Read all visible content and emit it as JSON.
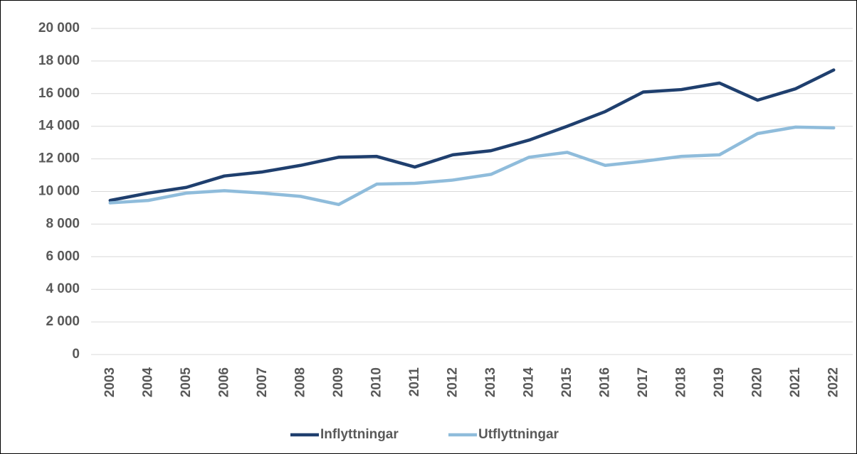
{
  "chart_data": {
    "type": "line",
    "categories": [
      "2003",
      "2004",
      "2005",
      "2006",
      "2007",
      "2008",
      "2009",
      "2010",
      "2011",
      "2012",
      "2013",
      "2014",
      "2015",
      "2016",
      "2017",
      "2018",
      "2019",
      "2020",
      "2021",
      "2022"
    ],
    "series": [
      {
        "name": "Inflyttningar",
        "color": "#1f3f6e",
        "values": [
          9450,
          9900,
          10250,
          10950,
          11200,
          11600,
          12100,
          12150,
          11500,
          12250,
          12500,
          13150,
          14000,
          14900,
          16100,
          16250,
          16650,
          15600,
          16300,
          17450
        ]
      },
      {
        "name": "Utflyttningar",
        "color": "#8fbcdb",
        "values": [
          9300,
          9450,
          9900,
          10050,
          9900,
          9700,
          9200,
          10450,
          10500,
          10700,
          11050,
          12100,
          12400,
          11600,
          11850,
          12150,
          12250,
          13550,
          13950,
          13900
        ]
      }
    ],
    "ylim": [
      0,
      20000
    ],
    "yticks": [
      0,
      {
        "value": 2000,
        "label": "2 000"
      },
      {
        "value": 4000,
        "label": "4 000"
      },
      {
        "value": 6000,
        "label": "6 000"
      },
      {
        "value": 8000,
        "label": "8 000"
      },
      {
        "value": 10000,
        "label": "10 000"
      },
      {
        "value": 12000,
        "label": "12 000"
      },
      {
        "value": 14000,
        "label": "14 000"
      },
      {
        "value": 16000,
        "label": "16 000"
      },
      {
        "value": 18000,
        "label": "18 000"
      },
      {
        "value": 20000,
        "label": "20 000"
      }
    ],
    "grid": true,
    "legend": "bottom"
  }
}
